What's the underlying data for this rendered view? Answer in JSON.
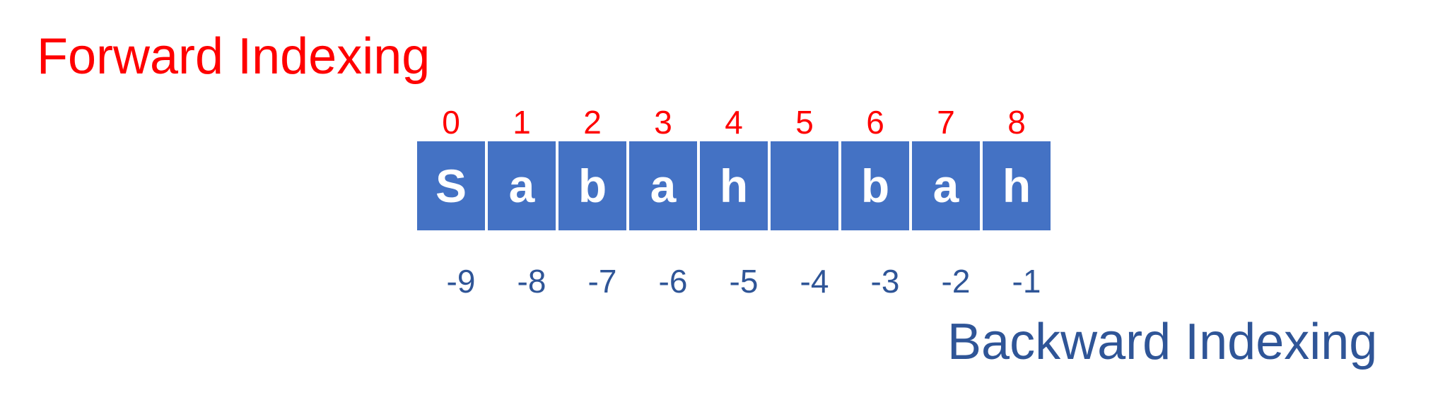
{
  "titles": {
    "forward": "Forward Indexing",
    "backward": "Backward Indexing"
  },
  "colors": {
    "forward": "#ff0000",
    "backward": "#2f5597",
    "cell_fill": "#4472c4",
    "cell_text": "#ffffff"
  },
  "cells": [
    {
      "char": "S",
      "fwd": "0",
      "bwd": "-9"
    },
    {
      "char": "a",
      "fwd": "1",
      "bwd": "-8"
    },
    {
      "char": "b",
      "fwd": "2",
      "bwd": "-7"
    },
    {
      "char": "a",
      "fwd": "3",
      "bwd": "-6"
    },
    {
      "char": "h",
      "fwd": "4",
      "bwd": "-5"
    },
    {
      "char": " ",
      "fwd": "5",
      "bwd": "-4"
    },
    {
      "char": "b",
      "fwd": "6",
      "bwd": "-3"
    },
    {
      "char": "a",
      "fwd": "7",
      "bwd": "-2"
    },
    {
      "char": "h",
      "fwd": "8",
      "bwd": "-1"
    }
  ]
}
